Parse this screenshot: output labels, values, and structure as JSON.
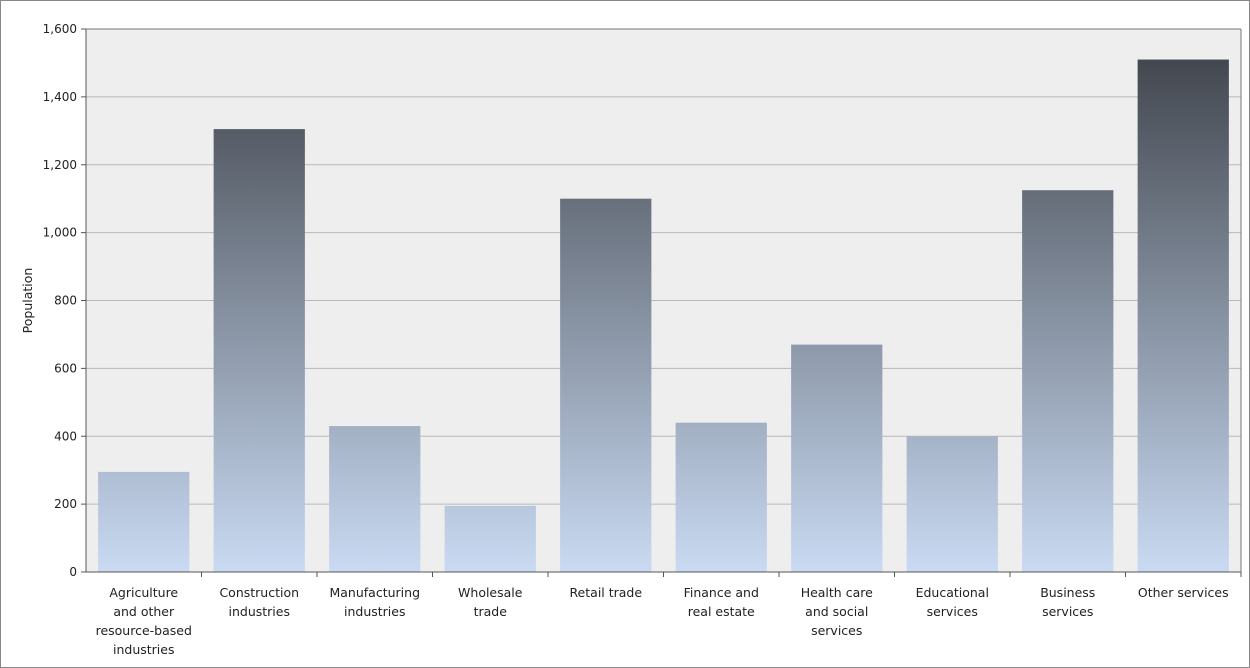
{
  "chart_data": {
    "type": "bar",
    "title": "",
    "xlabel": "",
    "ylabel": "Population",
    "ylim": [
      0,
      1600
    ],
    "yticks": [
      0,
      200,
      400,
      600,
      800,
      1000,
      1200,
      1400,
      1600
    ],
    "ytick_labels": [
      "0",
      "200",
      "400",
      "600",
      "800",
      "1,000",
      "1,200",
      "1,400",
      "1,600"
    ],
    "grid": true,
    "legend": "none",
    "categories": [
      [
        "Agriculture",
        "and other",
        "resource-based",
        "industries"
      ],
      [
        "Construction",
        "industries"
      ],
      [
        "Manufacturing",
        "industries"
      ],
      [
        "Wholesale",
        "trade"
      ],
      [
        "Retail trade"
      ],
      [
        "Finance and",
        "real estate"
      ],
      [
        "Health care",
        "and social",
        "services"
      ],
      [
        "Educational",
        "services"
      ],
      [
        "Business",
        "services"
      ],
      [
        "Other services"
      ]
    ],
    "series": [
      {
        "values": [
          295,
          1305,
          430,
          195,
          1100,
          440,
          670,
          400,
          1125,
          1510
        ]
      }
    ],
    "colors": {
      "plot_background": "#eeeeee",
      "gridline": "#b8b8b8",
      "bar_bottom": "#c9daf2",
      "bar_top": "#3b3f46"
    }
  }
}
